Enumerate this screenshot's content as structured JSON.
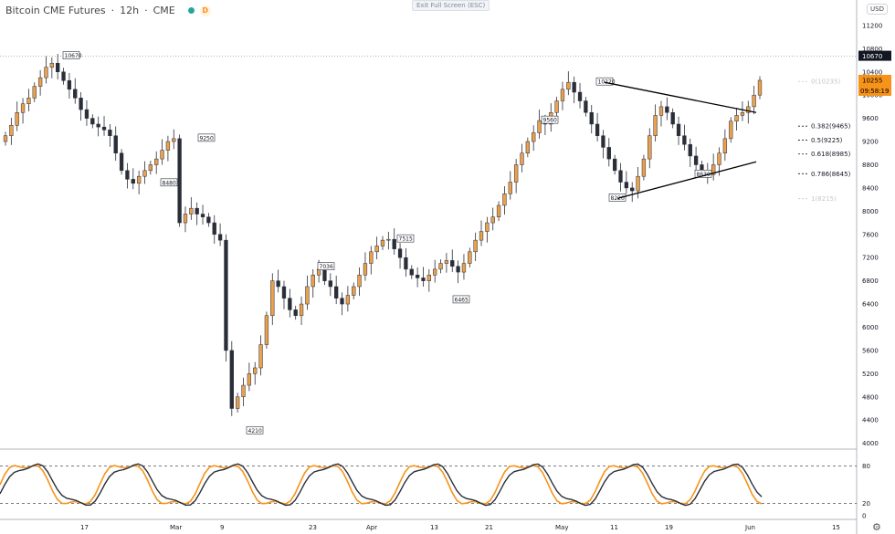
{
  "header": {
    "symbol": "Bitcoin CME Futures",
    "interval": "12h",
    "exchange": "CME",
    "badge": "D"
  },
  "toolbar": {
    "exit_fullscreen": "Exit Full Screen (ESC)",
    "currency": "USD"
  },
  "colors": {
    "up": "#e9a150",
    "down": "#2a2e39",
    "accent": "#f7931a",
    "line": "#000000"
  },
  "price_axis": {
    "ticks": [
      "11200",
      "10800",
      "10400",
      "10000",
      "9600",
      "9200",
      "8800",
      "8400",
      "8000",
      "7600",
      "7200",
      "6800",
      "6400",
      "6000",
      "5600",
      "5200",
      "4800",
      "4400",
      "4000"
    ]
  },
  "price_labels": {
    "high": "10670",
    "last": "10255",
    "countdown": "09:58:19"
  },
  "time_axis": {
    "labels": [
      "17",
      "Mar",
      "9",
      "23",
      "Apr",
      "13",
      "21",
      "May",
      "11",
      "19",
      "Jun",
      "15"
    ]
  },
  "osc_axis": {
    "ticks": [
      "80",
      "20",
      "0"
    ]
  },
  "annotations": [
    "10670",
    "8480",
    "9250",
    "4210",
    "7036",
    "7515",
    "6465",
    "9560",
    "10220",
    "8220",
    "8630"
  ],
  "fib_labels": [
    "0(10235)",
    "0.382(9465)",
    "0.5(9225)",
    "0.618(8985)",
    "0.786(8645)",
    "1(8215)"
  ],
  "chart_data": {
    "type": "candlestick",
    "title": "Bitcoin CME Futures · 12h · CME",
    "close_series": [
      9300,
      9480,
      9700,
      9850,
      9950,
      10150,
      10300,
      10480,
      10550,
      10400,
      10250,
      10100,
      9950,
      9750,
      9600,
      9500,
      9450,
      9400,
      9300,
      9000,
      8700,
      8550,
      8480,
      8600,
      8700,
      8800,
      8900,
      9050,
      9200,
      9250,
      7800,
      7950,
      8050,
      7950,
      7900,
      7800,
      7600,
      7500,
      5600,
      4600,
      4800,
      5000,
      5200,
      5300,
      5700,
      6200,
      6800,
      6700,
      6500,
      6300,
      6200,
      6400,
      6700,
      6900,
      7000,
      6800,
      6700,
      6500,
      6400,
      6550,
      6700,
      6900,
      7100,
      7300,
      7400,
      7500,
      7515,
      7350,
      7200,
      7000,
      6900,
      6850,
      6800,
      6900,
      7000,
      7100,
      7150,
      7050,
      6950,
      7100,
      7300,
      7500,
      7650,
      7800,
      7900,
      8100,
      8300,
      8500,
      8800,
      9000,
      9200,
      9350,
      9560,
      9500,
      9700,
      9900,
      10100,
      10220,
      10050,
      9900,
      9700,
      9500,
      9300,
      9100,
      8900,
      8700,
      8500,
      8400,
      8350,
      8600,
      8900,
      9300,
      9650,
      9800,
      9700,
      9500,
      9300,
      9150,
      8950,
      8800,
      8700,
      8630,
      8800,
      9000,
      9250,
      9550,
      9650,
      9700,
      9800,
      10000,
      10255
    ],
    "high": 10670,
    "last": 10255,
    "countdown": "09:58:19",
    "annotations": [
      10670,
      8480,
      9250,
      4210,
      7036,
      7515,
      6465,
      9560,
      10220,
      8220,
      8630
    ],
    "fib_levels": [
      {
        "ratio": "0",
        "price": 10235
      },
      {
        "ratio": "0.382",
        "price": 9465
      },
      {
        "ratio": "0.5",
        "price": 9225
      },
      {
        "ratio": "0.618",
        "price": 8985
      },
      {
        "ratio": "0.786",
        "price": 8645
      },
      {
        "ratio": "1",
        "price": 8215
      }
    ],
    "triangle": {
      "upper": [
        10220,
        9700
      ],
      "lower": [
        8220,
        8850
      ]
    },
    "oscillator": {
      "levels": [
        80,
        20
      ],
      "range": [
        0,
        100
      ]
    }
  }
}
